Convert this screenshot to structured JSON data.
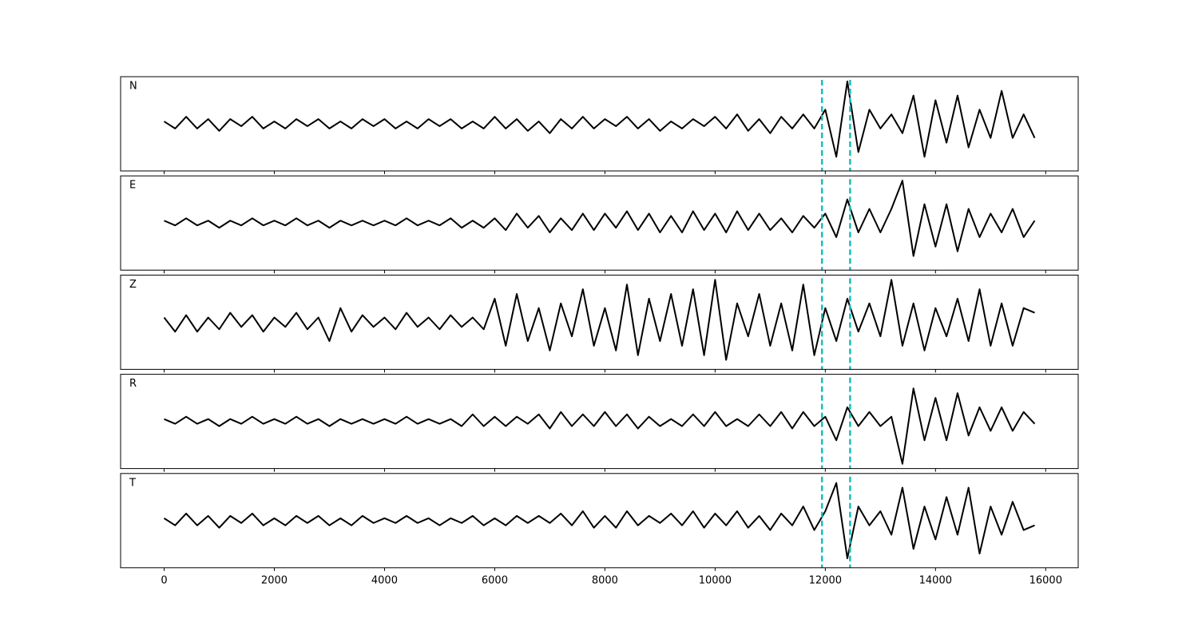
{
  "chart_data": {
    "type": "line",
    "subplots": true,
    "line_color": "#000000",
    "x": [
      0,
      200,
      400,
      600,
      800,
      1000,
      1200,
      1400,
      1600,
      1800,
      2000,
      2200,
      2400,
      2600,
      2800,
      3000,
      3200,
      3400,
      3600,
      3800,
      4000,
      4200,
      4400,
      4600,
      4800,
      5000,
      5200,
      5400,
      5600,
      5800,
      6000,
      6200,
      6400,
      6600,
      6800,
      7000,
      7200,
      7400,
      7600,
      7800,
      8000,
      8200,
      8400,
      8600,
      8800,
      9000,
      9200,
      9400,
      9600,
      9800,
      10000,
      10200,
      10400,
      10600,
      10800,
      11000,
      11200,
      11400,
      11600,
      11800,
      12000,
      12200,
      12400,
      12600,
      12800,
      13000,
      13200,
      13400,
      13600,
      13800,
      14000,
      14200,
      14400,
      14600,
      14800,
      15000,
      15200,
      15400,
      15600,
      15800
    ],
    "xlim": [
      -790,
      16590
    ],
    "xticks": [
      0,
      2000,
      4000,
      6000,
      8000,
      10000,
      12000,
      14000,
      16000
    ],
    "ylim": [
      -1,
      1
    ],
    "markers": {
      "x": [
        11940,
        12450
      ],
      "color": "#17bebe"
    },
    "series": [
      {
        "name": "N",
        "values": [
          0.05,
          -0.1,
          0.15,
          -0.1,
          0.1,
          -0.15,
          0.1,
          -0.05,
          0.15,
          -0.1,
          0.05,
          -0.1,
          0.1,
          -0.05,
          0.1,
          -0.1,
          0.05,
          -0.1,
          0.1,
          -0.05,
          0.1,
          -0.1,
          0.05,
          -0.1,
          0.1,
          -0.05,
          0.1,
          -0.1,
          0.05,
          -0.1,
          0.15,
          -0.1,
          0.1,
          -0.15,
          0.05,
          -0.2,
          0.1,
          -0.1,
          0.15,
          -0.1,
          0.1,
          -0.05,
          0.15,
          -0.1,
          0.1,
          -0.15,
          0.05,
          -0.1,
          0.1,
          -0.05,
          0.15,
          -0.1,
          0.2,
          -0.15,
          0.1,
          -0.2,
          0.15,
          -0.1,
          0.2,
          -0.1,
          0.3,
          -0.7,
          0.9,
          -0.6,
          0.3,
          -0.1,
          0.2,
          -0.2,
          0.6,
          -0.7,
          0.5,
          -0.4,
          0.6,
          -0.5,
          0.3,
          -0.3,
          0.7,
          -0.3,
          0.2,
          -0.3
        ]
      },
      {
        "name": "E",
        "values": [
          0.05,
          -0.05,
          0.1,
          -0.05,
          0.05,
          -0.1,
          0.05,
          -0.05,
          0.1,
          -0.05,
          0.05,
          -0.05,
          0.1,
          -0.05,
          0.05,
          -0.1,
          0.05,
          -0.05,
          0.05,
          -0.05,
          0.05,
          -0.05,
          0.1,
          -0.05,
          0.05,
          -0.05,
          0.1,
          -0.1,
          0.05,
          -0.1,
          0.1,
          -0.15,
          0.2,
          -0.1,
          0.15,
          -0.2,
          0.1,
          -0.15,
          0.2,
          -0.15,
          0.2,
          -0.1,
          0.25,
          -0.15,
          0.2,
          -0.2,
          0.15,
          -0.2,
          0.25,
          -0.15,
          0.2,
          -0.2,
          0.25,
          -0.15,
          0.2,
          -0.15,
          0.1,
          -0.2,
          0.15,
          -0.1,
          0.2,
          -0.3,
          0.5,
          -0.2,
          0.3,
          -0.2,
          0.3,
          0.9,
          -0.7,
          0.4,
          -0.5,
          0.4,
          -0.6,
          0.3,
          -0.3,
          0.2,
          -0.2,
          0.3,
          -0.3,
          0.05
        ]
      },
      {
        "name": "Z",
        "values": [
          0.1,
          -0.2,
          0.15,
          -0.2,
          0.1,
          -0.15,
          0.2,
          -0.1,
          0.15,
          -0.2,
          0.1,
          -0.1,
          0.2,
          -0.15,
          0.1,
          -0.4,
          0.3,
          -0.2,
          0.15,
          -0.1,
          0.1,
          -0.15,
          0.2,
          -0.1,
          0.1,
          -0.15,
          0.15,
          -0.1,
          0.1,
          -0.15,
          0.5,
          -0.5,
          0.6,
          -0.4,
          0.3,
          -0.6,
          0.4,
          -0.3,
          0.7,
          -0.5,
          0.3,
          -0.6,
          0.8,
          -0.7,
          0.5,
          -0.4,
          0.6,
          -0.5,
          0.7,
          -0.7,
          0.9,
          -0.8,
          0.4,
          -0.3,
          0.6,
          -0.5,
          0.4,
          -0.6,
          0.8,
          -0.7,
          0.3,
          -0.4,
          0.5,
          -0.2,
          0.4,
          -0.3,
          0.9,
          -0.5,
          0.4,
          -0.6,
          0.3,
          -0.3,
          0.5,
          -0.4,
          0.7,
          -0.5,
          0.4,
          -0.5,
          0.3,
          0.2
        ]
      },
      {
        "name": "R",
        "values": [
          0.05,
          -0.05,
          0.1,
          -0.05,
          0.05,
          -0.1,
          0.05,
          -0.05,
          0.1,
          -0.05,
          0.05,
          -0.05,
          0.1,
          -0.05,
          0.05,
          -0.1,
          0.05,
          -0.05,
          0.05,
          -0.05,
          0.05,
          -0.05,
          0.1,
          -0.05,
          0.05,
          -0.05,
          0.05,
          -0.1,
          0.15,
          -0.1,
          0.1,
          -0.1,
          0.1,
          -0.05,
          0.15,
          -0.15,
          0.2,
          -0.1,
          0.15,
          -0.1,
          0.2,
          -0.1,
          0.15,
          -0.15,
          0.1,
          -0.1,
          0.05,
          -0.1,
          0.15,
          -0.1,
          0.2,
          -0.1,
          0.05,
          -0.1,
          0.15,
          -0.1,
          0.2,
          -0.15,
          0.2,
          -0.1,
          0.1,
          -0.4,
          0.3,
          -0.1,
          0.2,
          -0.1,
          0.1,
          -0.9,
          0.7,
          -0.4,
          0.5,
          -0.4,
          0.6,
          -0.3,
          0.3,
          -0.2,
          0.3,
          -0.2,
          0.2,
          -0.05
        ]
      },
      {
        "name": "T",
        "values": [
          0.05,
          -0.1,
          0.15,
          -0.1,
          0.1,
          -0.15,
          0.1,
          -0.05,
          0.15,
          -0.1,
          0.05,
          -0.1,
          0.1,
          -0.05,
          0.1,
          -0.1,
          0.05,
          -0.1,
          0.1,
          -0.05,
          0.05,
          -0.05,
          0.1,
          -0.05,
          0.05,
          -0.1,
          0.05,
          -0.05,
          0.1,
          -0.1,
          0.05,
          -0.1,
          0.1,
          -0.05,
          0.1,
          -0.05,
          0.15,
          -0.1,
          0.2,
          -0.15,
          0.1,
          -0.15,
          0.2,
          -0.1,
          0.1,
          -0.05,
          0.15,
          -0.1,
          0.2,
          -0.15,
          0.15,
          -0.1,
          0.2,
          -0.15,
          0.1,
          -0.2,
          0.15,
          -0.1,
          0.3,
          -0.2,
          0.2,
          0.8,
          -0.8,
          0.3,
          -0.1,
          0.2,
          -0.3,
          0.7,
          -0.6,
          0.3,
          -0.4,
          0.5,
          -0.3,
          0.7,
          -0.7,
          0.3,
          -0.3,
          0.4,
          -0.2,
          -0.1
        ]
      }
    ]
  }
}
